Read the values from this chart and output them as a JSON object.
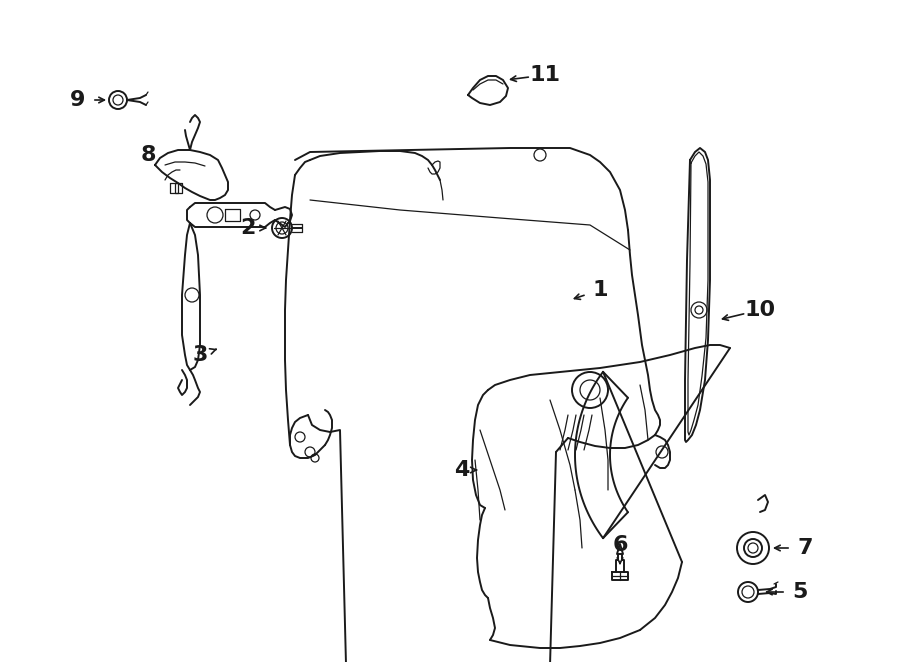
{
  "background_color": "#ffffff",
  "line_color": "#1a1a1a",
  "fig_width": 9.0,
  "fig_height": 6.62,
  "dpi": 100,
  "label_fontsize": 16,
  "lw_main": 1.4,
  "lw_thin": 0.9
}
